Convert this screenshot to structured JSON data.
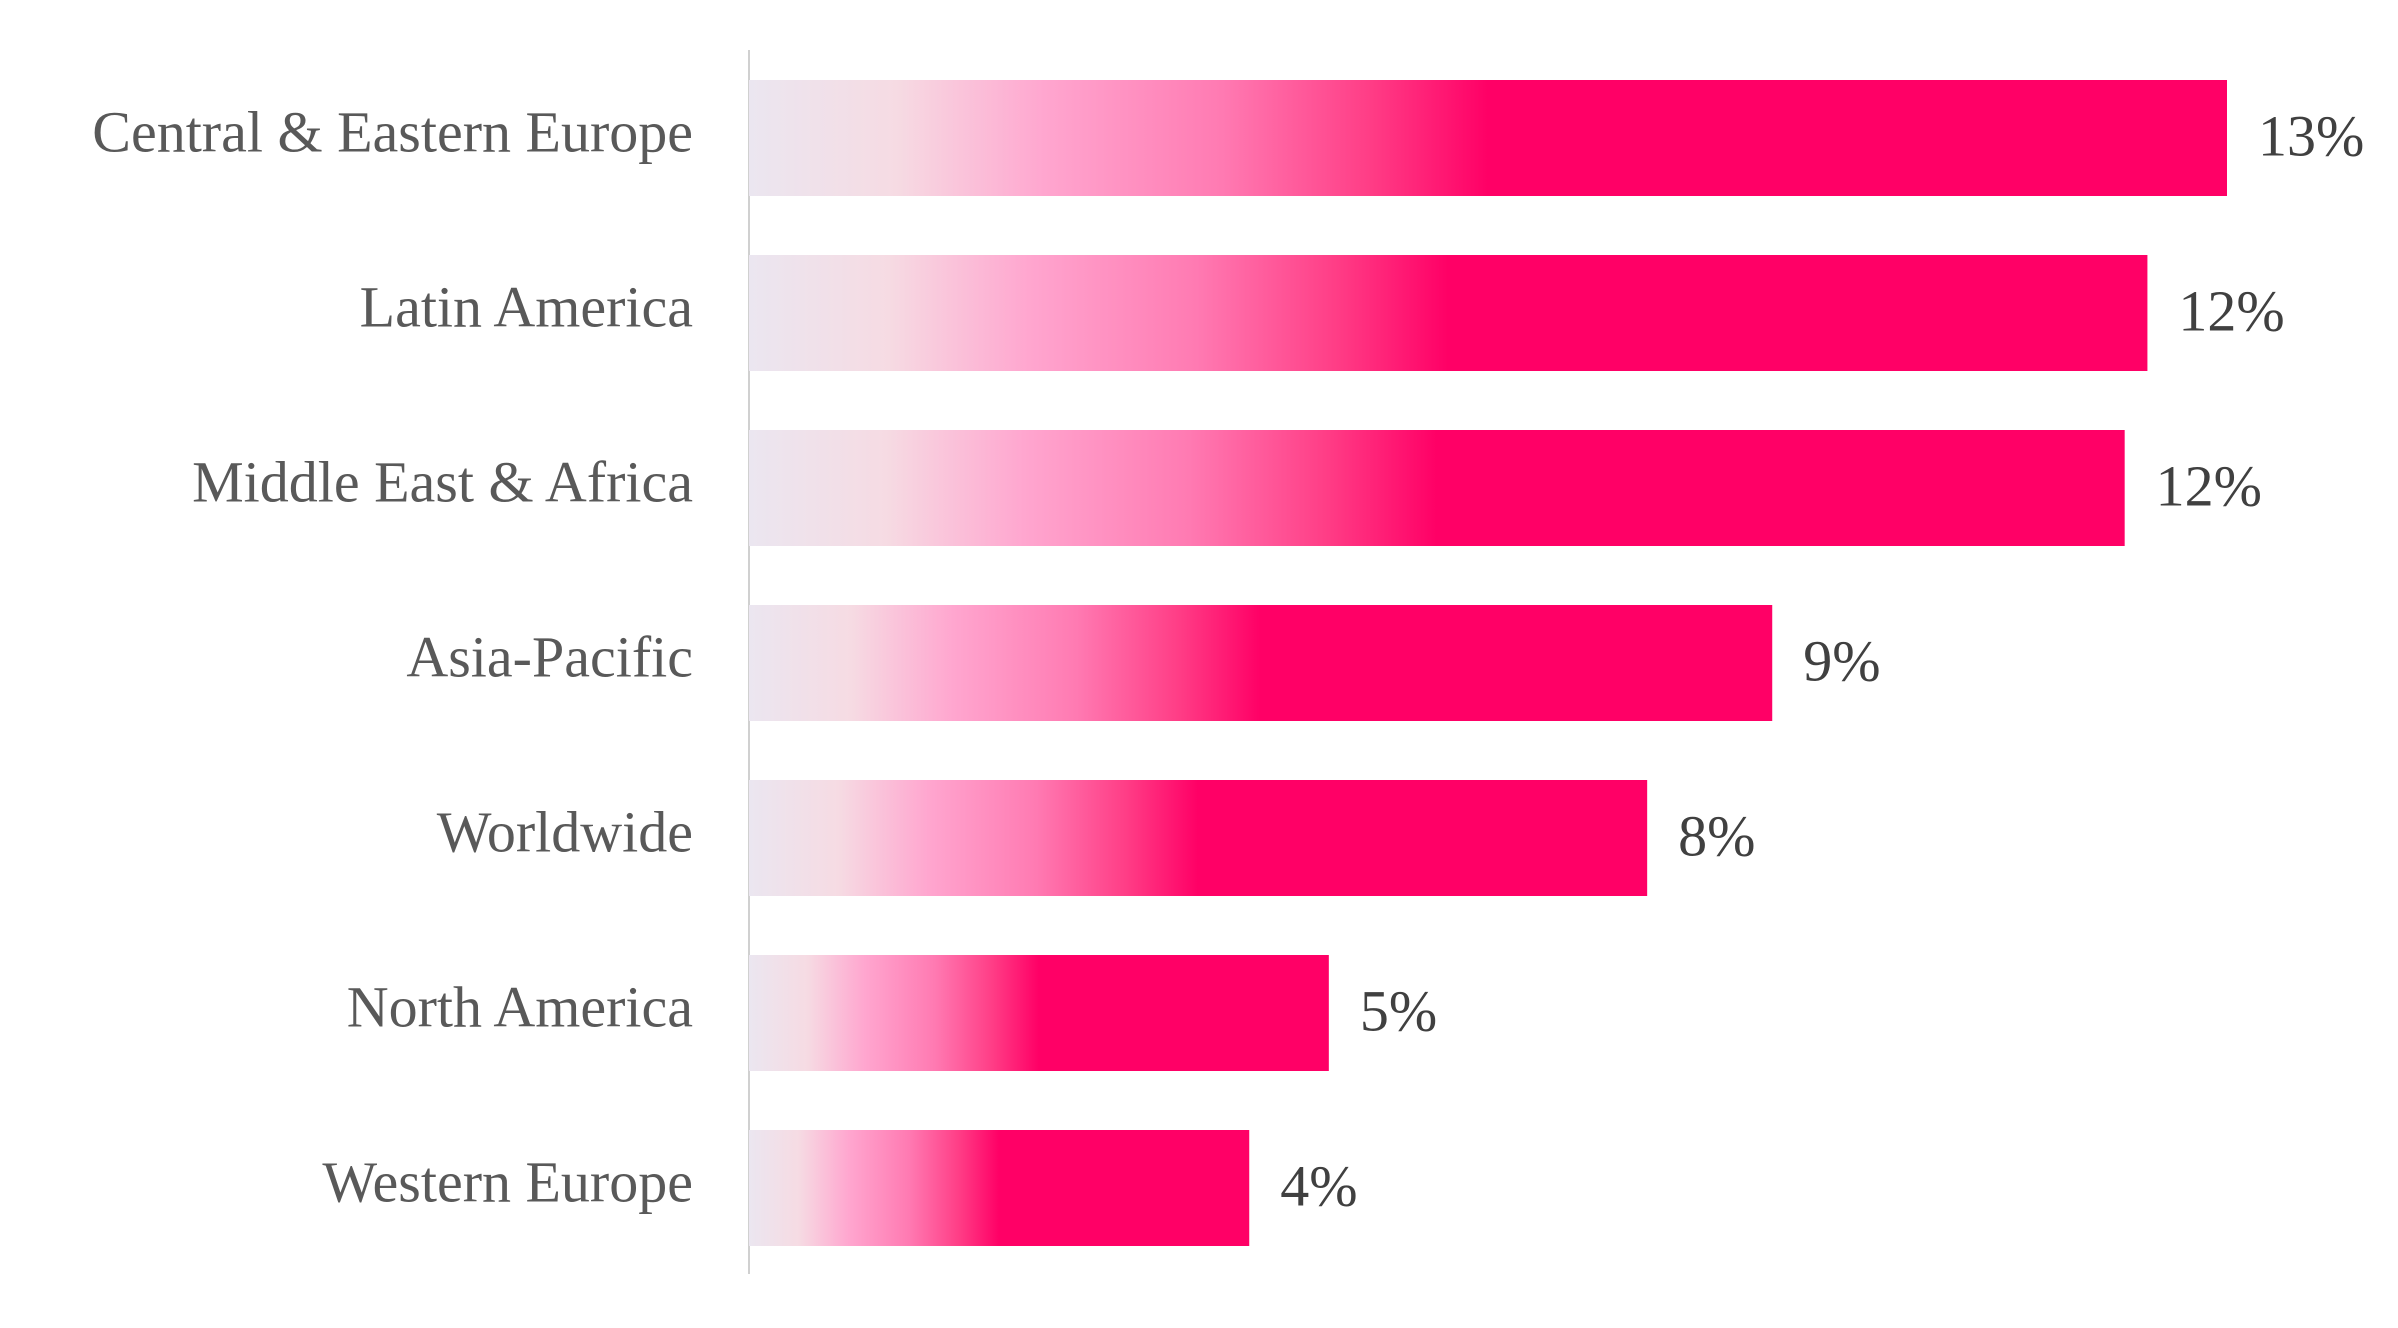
{
  "chart_data": {
    "type": "barh",
    "categories": [
      "Central & Eastern Europe",
      "Latin America",
      "Middle East & Africa",
      "Asia-Pacific",
      "Worldwide",
      "North America",
      "Western Europe"
    ],
    "values": [
      13,
      12.3,
      12.1,
      9,
      7.9,
      5.1,
      4.4
    ],
    "value_labels": [
      "13%",
      "12%",
      "12%",
      "9%",
      "8%",
      "5%",
      "4%"
    ],
    "color": "#ff0066"
  }
}
